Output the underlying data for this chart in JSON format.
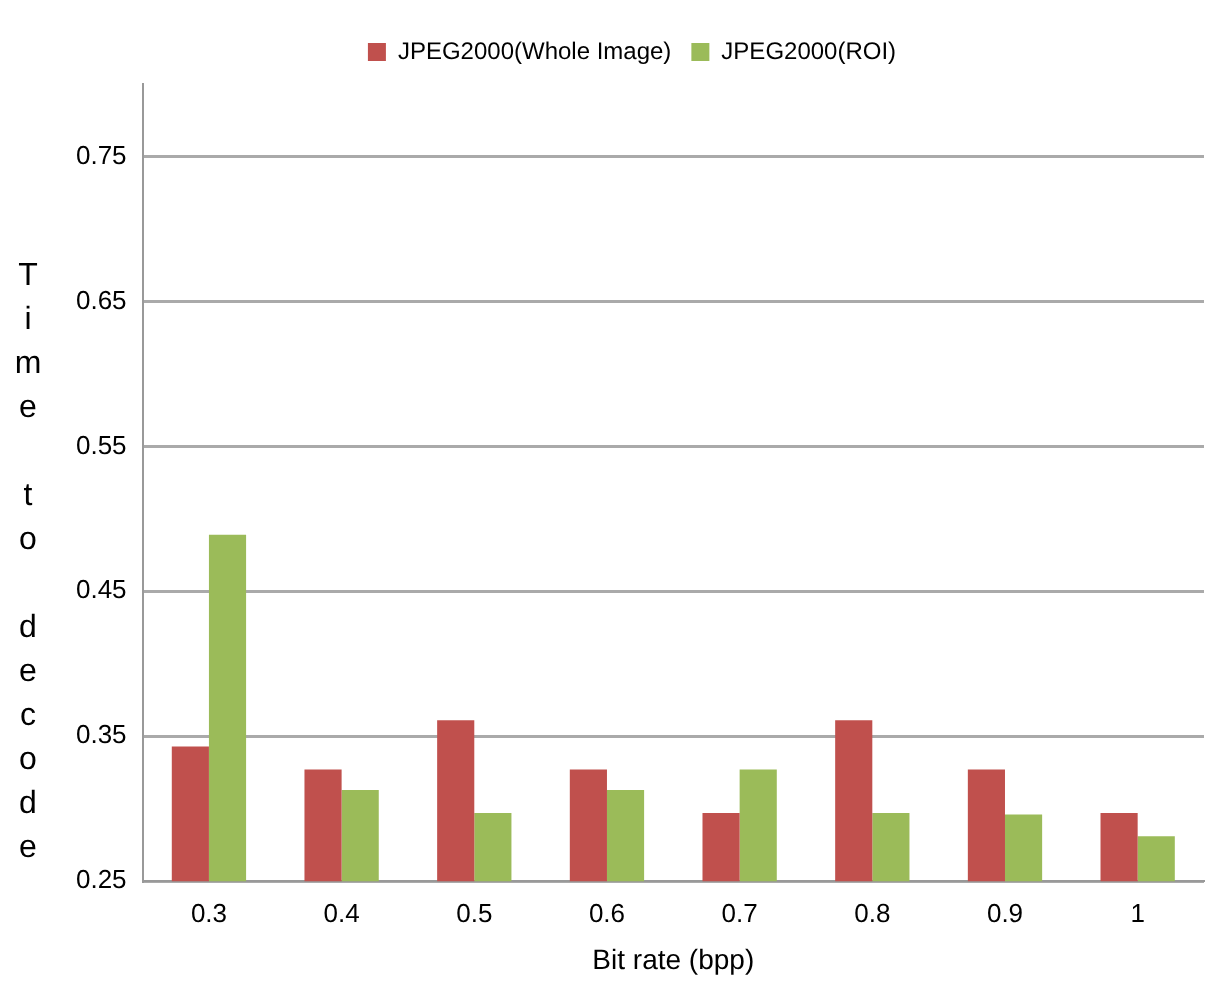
{
  "chart_data": {
    "type": "bar",
    "xlabel": "Bit rate (bpp)",
    "ylabel": "Time to decode",
    "categories": [
      "0.3",
      "0.4",
      "0.5",
      "0.6",
      "0.7",
      "0.8",
      "0.9",
      "1"
    ],
    "series": [
      {
        "name": "JPEG2000(Whole Image)",
        "color": "#c0504d",
        "values": [
          0.343,
          0.327,
          0.361,
          0.327,
          0.297,
          0.361,
          0.327,
          0.297
        ]
      },
      {
        "name": "JPEG2000(ROI)",
        "color": "#9bbb59",
        "values": [
          0.489,
          0.313,
          0.297,
          0.313,
          0.327,
          0.297,
          0.296,
          0.281
        ]
      }
    ],
    "ylim": [
      0.25,
      0.8
    ],
    "yticks": [
      0.25,
      0.35,
      0.45,
      0.55,
      0.65,
      0.75
    ],
    "grid": "y",
    "legend": "top"
  }
}
